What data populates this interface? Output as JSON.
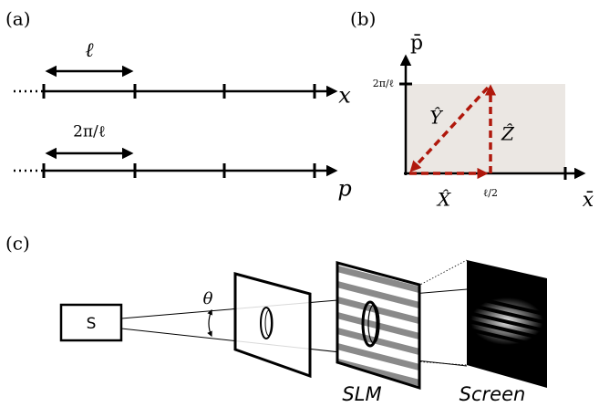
{
  "panel_a": {
    "label": "(a)",
    "spacing": "ℓ",
    "x_axis": "x",
    "period": "2π/ℓ",
    "p_axis": "p"
  },
  "panel_b": {
    "label": "(b)",
    "y_axis": "p̄",
    "y_tick": "2π/ℓ",
    "y_operator": "Ŷ",
    "z_operator": "Ẑ",
    "x_operator": "X̂",
    "x_tick": "ℓ/2",
    "x_axis": "x̄"
  },
  "panel_c": {
    "label": "(c)",
    "angle": "θ",
    "source": "S",
    "slm": "SLM",
    "screen": "Screen"
  }
}
